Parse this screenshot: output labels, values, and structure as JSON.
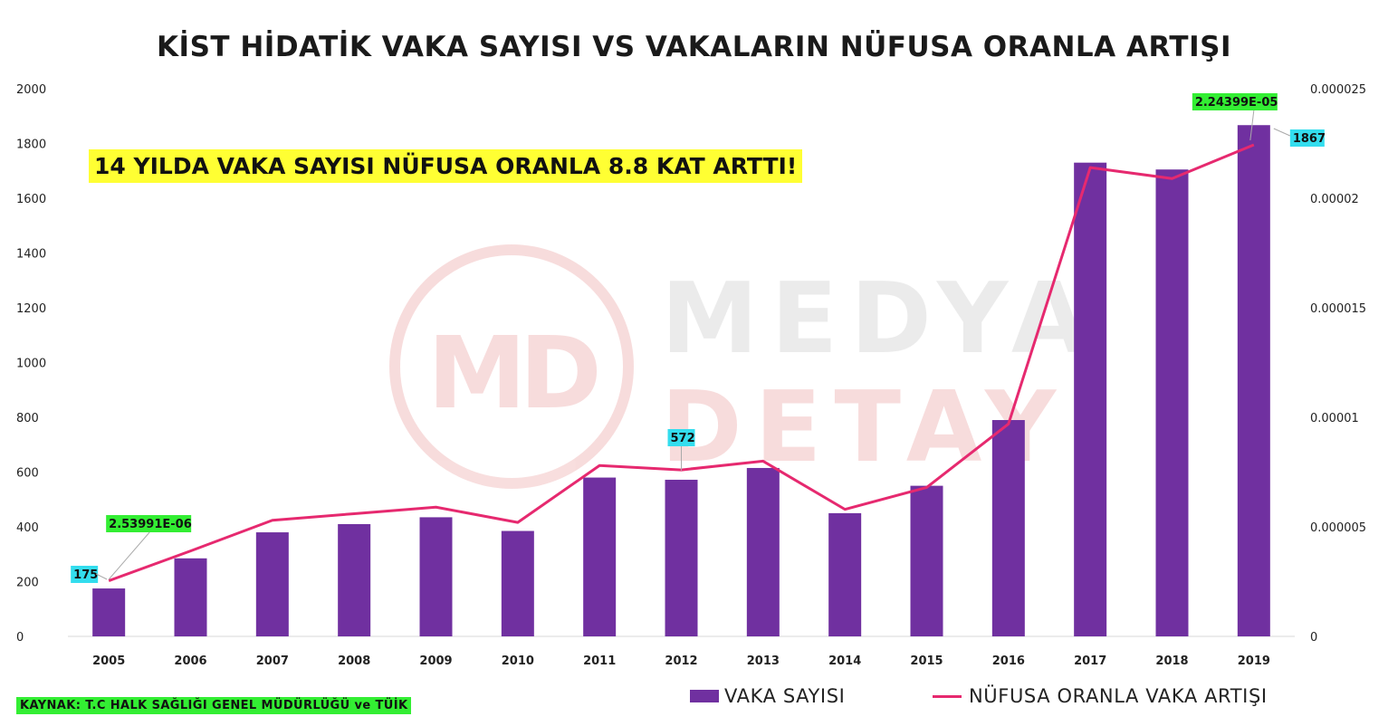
{
  "chart_data": {
    "type": "bar+line",
    "title": "KİST HİDATİK VAKA SAYISI VS VAKALARIN NÜFUSA ORANLA ARTIŞI",
    "categories": [
      "2005",
      "2006",
      "2007",
      "2008",
      "2009",
      "2010",
      "2011",
      "2012",
      "2013",
      "2014",
      "2015",
      "2016",
      "2017",
      "2018",
      "2019"
    ],
    "series": [
      {
        "name": "VAKA SAYISI",
        "type": "bar",
        "axis": "left",
        "color": "#7030a0",
        "values": [
          175,
          285,
          380,
          410,
          435,
          385,
          580,
          572,
          615,
          450,
          550,
          790,
          1730,
          1705,
          1867
        ]
      },
      {
        "name": "NÜFUSA ORANLA VAKA ARTIŞI",
        "type": "line",
        "axis": "right",
        "color": "#e6296f",
        "values": [
          2.53991e-06,
          3.9e-06,
          5.3e-06,
          5.6e-06,
          5.9e-06,
          5.2e-06,
          7.8e-06,
          7.6e-06,
          8e-06,
          5.8e-06,
          6.8e-06,
          9.7e-06,
          2.14e-05,
          2.09e-05,
          2.24399e-05
        ]
      }
    ],
    "left_axis": {
      "min": 0,
      "max": 2000,
      "ticks": [
        "0",
        "200",
        "400",
        "600",
        "800",
        "1000",
        "1200",
        "1400",
        "1600",
        "1800",
        "2000"
      ]
    },
    "right_axis": {
      "min": 0,
      "max": 2.5e-05,
      "ticks": [
        "0",
        "0.000005",
        "0.00001",
        "0.000015",
        "0.00002",
        "0.000025"
      ]
    },
    "data_labels": [
      {
        "text": "175",
        "color": "#33ddee"
      },
      {
        "text": "2.53991E-06",
        "color": "#33ee33"
      },
      {
        "text": "572",
        "color": "#33ddee"
      },
      {
        "text": "2.24399E-05",
        "color": "#33ee33"
      },
      {
        "text": "1867",
        "color": "#33ddee"
      }
    ],
    "grid": false,
    "legend_position": "bottom-right"
  },
  "headline": "14 YILDA VAKA SAYISI NÜFUSA ORANLA 8.8 KAT ARTTI!",
  "source": "KAYNAK: T.C HALK SAĞLIĞI GENEL MÜDÜRLÜĞÜ  ve TÜİK",
  "watermark": {
    "line1": "MEDYA",
    "line2": "DETAY",
    "logo": "MD"
  }
}
